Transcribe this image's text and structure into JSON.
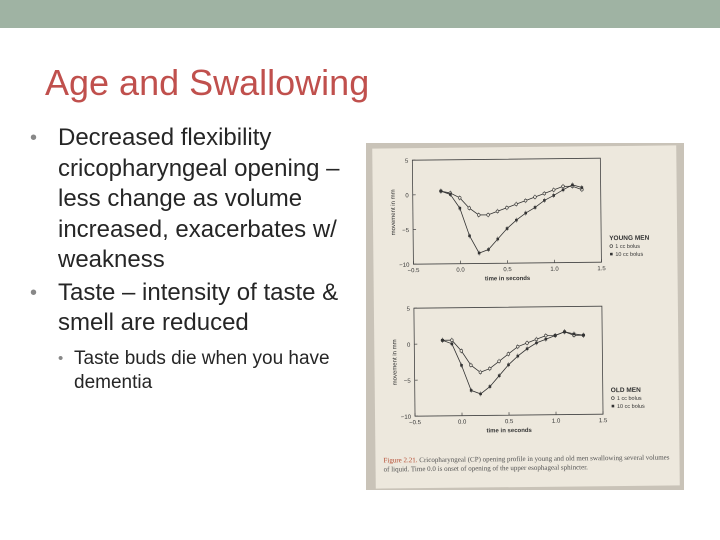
{
  "slide": {
    "title": "Age and Swallowing",
    "bullets": [
      {
        "text": "Decreased flexibility cricopharyngeal opening – less change as volume increased, exacerbates w/ weakness",
        "level": 1
      },
      {
        "text": "Taste – intensity of taste & smell are reduced",
        "level": 1
      },
      {
        "text": "Taste buds die when you have dementia",
        "level": 2
      }
    ],
    "colors": {
      "title": "#c0504d",
      "top_bar": "#9fb3a3",
      "text": "#262626"
    }
  },
  "figure": {
    "panels": [
      {
        "group_label": "YOUNG MEN",
        "ylabel": "movement in mm",
        "xlabel": "time in seconds",
        "legend": [
          "1 cc bolus",
          "10 cc bolus"
        ]
      },
      {
        "group_label": "OLD MEN",
        "ylabel": "movement in mm",
        "xlabel": "time in seconds",
        "legend": [
          "1 cc bolus",
          "10 cc bolus"
        ]
      }
    ],
    "caption_prefix": "Figure 2.21.",
    "caption_text": "Cricopharyngeal (CP) opening profile in young and old men swallowing several volumes of liquid. Time 0.0 is onset of opening of the upper esophageal sphincter."
  },
  "chart_data": [
    {
      "type": "line",
      "title": "YOUNG MEN",
      "xlabel": "time in seconds",
      "ylabel": "movement in mm",
      "xlim": [
        -0.5,
        1.5
      ],
      "ylim": [
        -10,
        5
      ],
      "xticks": [
        "-0.5",
        "0.0",
        "0.5",
        "1.0",
        "1.5"
      ],
      "yticks": [
        "5",
        "0",
        "-5",
        "-10"
      ],
      "series": [
        {
          "name": "1 cc bolus",
          "marker": "open",
          "x": [
            -0.2,
            -0.1,
            0.0,
            0.1,
            0.2,
            0.3,
            0.4,
            0.5,
            0.6,
            0.7,
            0.8,
            0.9,
            1.0,
            1.1,
            1.2,
            1.3
          ],
          "y": [
            0.5,
            0.2,
            -0.5,
            -2.0,
            -3.0,
            -3.0,
            -2.5,
            -2.0,
            -1.5,
            -1.0,
            -0.5,
            0.0,
            0.5,
            1.0,
            1.0,
            0.5
          ]
        },
        {
          "name": "10 cc bolus",
          "marker": "filled",
          "x": [
            -0.2,
            -0.1,
            0.0,
            0.1,
            0.2,
            0.3,
            0.4,
            0.5,
            0.6,
            0.7,
            0.8,
            0.9,
            1.0,
            1.1,
            1.2,
            1.3
          ],
          "y": [
            0.5,
            0.0,
            -2.0,
            -6.0,
            -8.5,
            -8.0,
            -6.5,
            -5.0,
            -3.8,
            -2.8,
            -2.0,
            -1.0,
            -0.3,
            0.5,
            1.2,
            0.8
          ]
        }
      ]
    },
    {
      "type": "line",
      "title": "OLD MEN",
      "xlabel": "time in seconds",
      "ylabel": "movement in mm",
      "xlim": [
        -0.5,
        1.5
      ],
      "ylim": [
        -10,
        5
      ],
      "xticks": [
        "-0.5",
        "0.0",
        "0.5",
        "1.0",
        "1.5"
      ],
      "yticks": [
        "5",
        "0",
        "-5",
        "-10"
      ],
      "series": [
        {
          "name": "1 cc bolus",
          "marker": "open",
          "x": [
            -0.2,
            -0.1,
            0.0,
            0.1,
            0.2,
            0.3,
            0.4,
            0.5,
            0.6,
            0.7,
            0.8,
            0.9,
            1.0,
            1.1,
            1.2,
            1.3
          ],
          "y": [
            0.5,
            0.5,
            -1.0,
            -3.0,
            -4.0,
            -3.5,
            -2.5,
            -1.5,
            -0.5,
            0.0,
            0.5,
            1.0,
            1.0,
            1.5,
            1.0,
            1.0
          ]
        },
        {
          "name": "10 cc bolus",
          "marker": "filled",
          "x": [
            -0.2,
            -0.1,
            0.0,
            0.1,
            0.2,
            0.3,
            0.4,
            0.5,
            0.6,
            0.7,
            0.8,
            0.9,
            1.0,
            1.1,
            1.2,
            1.3
          ],
          "y": [
            0.5,
            0.0,
            -3.0,
            -6.5,
            -7.0,
            -6.0,
            -4.5,
            -3.0,
            -1.8,
            -0.8,
            0.0,
            0.5,
            1.0,
            1.5,
            1.2,
            1.0
          ]
        }
      ]
    }
  ]
}
